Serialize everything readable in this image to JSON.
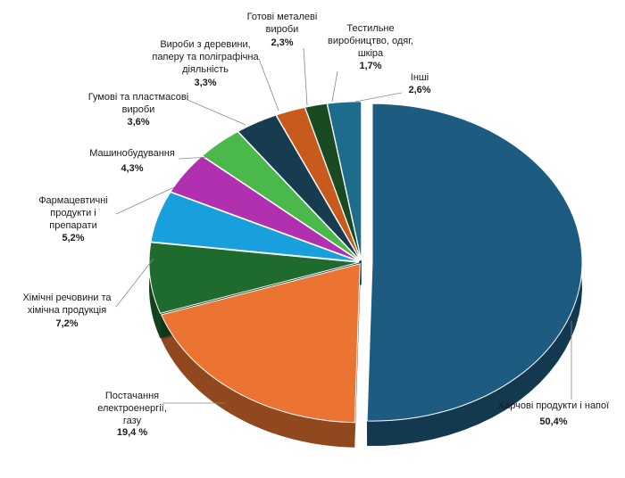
{
  "chart_data": {
    "type": "pie",
    "variant": "3d-exploded",
    "unit": "%",
    "slices": [
      {
        "name": "Харчові продукти і напої",
        "value": 50.4,
        "value_label": "50,4%",
        "color": "#1d5c80"
      },
      {
        "name": "Постачання електроенергії, газу",
        "value": 19.4,
        "value_label": "19,4 %",
        "color": "#ec7432"
      },
      {
        "name": "Хімічні речовини та хімічна продукція",
        "value": 7.2,
        "value_label": "7,2%",
        "color": "#1f6b2e"
      },
      {
        "name": "Фармацевтичні продукти і препарати",
        "value": 5.2,
        "value_label": "5,2%",
        "color": "#18a0dc"
      },
      {
        "name": "Машинобудування",
        "value": 4.3,
        "value_label": "4,3%",
        "color": "#b030b0"
      },
      {
        "name": "Гумові та пластмасові вироби",
        "value": 3.6,
        "value_label": "3,6%",
        "color": "#4ab84a"
      },
      {
        "name": "Вироби з деревини, паперу та поліграфічна діяльність",
        "value": 3.3,
        "value_label": "3,3%",
        "color": "#173c50"
      },
      {
        "name": "Готові металеві вироби",
        "value": 2.3,
        "value_label": "2,3%",
        "color": "#c85a1e"
      },
      {
        "name": "Тестильне виробництво, одяг, шкіра",
        "value": 1.7,
        "value_label": "1,7%",
        "color": "#1a4a22"
      },
      {
        "name": "Інші",
        "value": 2.6,
        "value_label": "2,6%",
        "color": "#1d6c8c"
      }
    ]
  }
}
